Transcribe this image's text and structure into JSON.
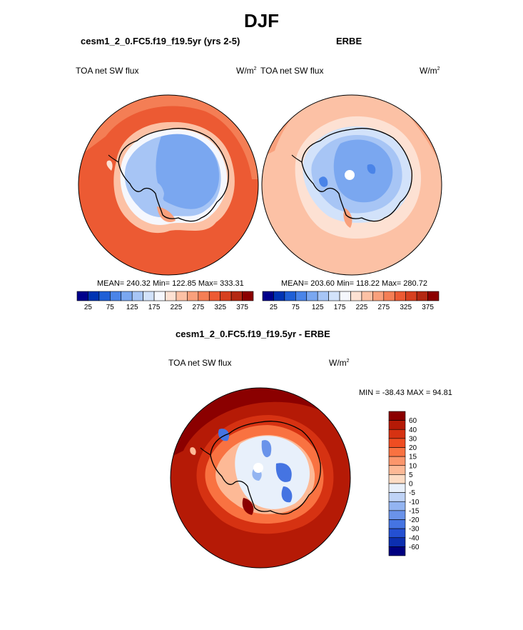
{
  "page": {
    "title": "DJF"
  },
  "panels": {
    "model": {
      "title": "cesm1_2_0.FC5.f19_f19.5yr (yrs 2-5)",
      "left_label": "TOA net SW flux",
      "right_label": "W/m",
      "right_label_sup": "2",
      "stats": "MEAN= 240.32  Min= 122.85  Max= 333.31"
    },
    "obs": {
      "title": "ERBE",
      "left_label": "TOA net SW flux",
      "right_label": "W/m",
      "right_label_sup": "2",
      "stats": "MEAN= 203.60  Min= 118.22  Max= 280.72"
    },
    "diff": {
      "title": "cesm1_2_0.FC5.f19_f19.5yr - ERBE",
      "left_label": "TOA net SW flux",
      "right_label": "W/m",
      "right_label_sup": "2",
      "stats": "MIN = -38.43 MAX =  94.81"
    }
  },
  "chart_data": [
    {
      "type": "heatmap",
      "panel": "model",
      "projection": "south-polar-stereographic",
      "mean": 240.32,
      "min": 122.85,
      "max": 333.31,
      "colorbar": {
        "orientation": "horizontal",
        "levels": [
          25,
          50,
          75,
          100,
          125,
          150,
          175,
          200,
          225,
          250,
          275,
          300,
          325,
          350,
          375
        ],
        "tick_labels": [
          "25",
          "75",
          "125",
          "175",
          "225",
          "275",
          "325",
          "375"
        ],
        "colors": [
          "#00008b",
          "#0033b3",
          "#1f5fd6",
          "#4a84e8",
          "#7aa7f0",
          "#a7c5f5",
          "#d2e2fa",
          "#f5f7fd",
          "#fde1d3",
          "#fcc1a5",
          "#f9a07c",
          "#f47e55",
          "#ec5a33",
          "#d6401f",
          "#b42812",
          "#8b0000"
        ]
      }
    },
    {
      "type": "heatmap",
      "panel": "obs",
      "projection": "south-polar-stereographic",
      "mean": 203.6,
      "min": 118.22,
      "max": 280.72,
      "colorbar": {
        "orientation": "horizontal",
        "levels": [
          25,
          50,
          75,
          100,
          125,
          150,
          175,
          200,
          225,
          250,
          275,
          300,
          325,
          350,
          375
        ],
        "tick_labels": [
          "25",
          "75",
          "125",
          "175",
          "225",
          "275",
          "325",
          "375"
        ],
        "colors": [
          "#00008b",
          "#0033b3",
          "#1f5fd6",
          "#4a84e8",
          "#7aa7f0",
          "#a7c5f5",
          "#d2e2fa",
          "#f5f7fd",
          "#fde1d3",
          "#fcc1a5",
          "#f9a07c",
          "#f47e55",
          "#ec5a33",
          "#d6401f",
          "#b42812",
          "#8b0000"
        ]
      }
    },
    {
      "type": "heatmap",
      "panel": "diff",
      "projection": "south-polar-stereographic",
      "min": -38.43,
      "max": 94.81,
      "colorbar": {
        "orientation": "vertical",
        "tick_labels": [
          "60",
          "40",
          "30",
          "20",
          "15",
          "10",
          "5",
          "0",
          "-5",
          "-10",
          "-15",
          "-20",
          "-30",
          "-40",
          "-60"
        ],
        "colors": [
          "#8b0000",
          "#b51a06",
          "#d63212",
          "#ef4d22",
          "#f97241",
          "#fb966c",
          "#fdb996",
          "#fddcc4",
          "#e8f0fb",
          "#bfd3f6",
          "#93b4f1",
          "#6a93ea",
          "#4574e2",
          "#2450d2",
          "#0c2fb0",
          "#000080"
        ]
      }
    }
  ]
}
